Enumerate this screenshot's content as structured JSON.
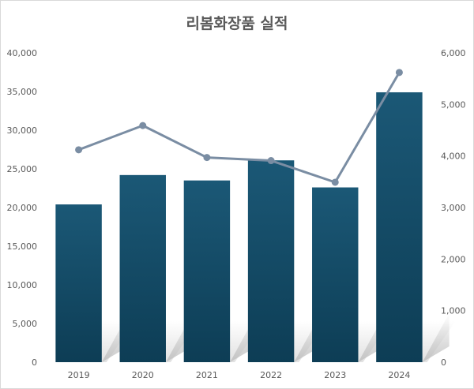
{
  "chart_data": {
    "type": "bar+line",
    "title": "리봄화장품 실적",
    "categories": [
      "2019",
      "2020",
      "2021",
      "2022",
      "2023",
      "2024"
    ],
    "series": [
      {
        "type": "bar",
        "axis": "left",
        "values": [
          20400,
          24200,
          23500,
          26100,
          22600,
          34900
        ]
      },
      {
        "type": "line",
        "axis": "right",
        "values": [
          4120,
          4590,
          3970,
          3910,
          3490,
          5620
        ]
      }
    ],
    "y_left": {
      "ylim": [
        0,
        40000
      ],
      "ticks": [
        "0",
        "5,000",
        "10,000",
        "15,000",
        "20,000",
        "25,000",
        "30,000",
        "35,000",
        "40,000"
      ]
    },
    "y_right": {
      "ylim": [
        0,
        6000
      ],
      "ticks": [
        "0",
        "1,000",
        "2,000",
        "3,000",
        "4,000",
        "5,000",
        "6,000"
      ]
    },
    "grid": false,
    "legend": "none",
    "colors": {
      "bar_top": "#1b5876",
      "bar_bottom": "#0d3d55",
      "line": "#7a8da3",
      "text": "#595959"
    }
  }
}
